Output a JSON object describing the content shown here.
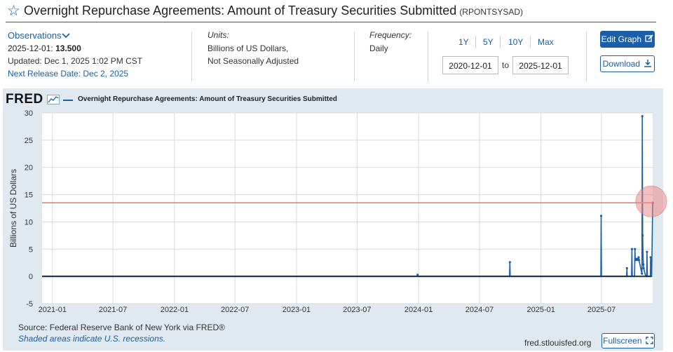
{
  "header": {
    "title": "Overnight Repurchase Agreements: Amount of Treasury Securities Submitted",
    "series_id": "(RPONTSYSAD)"
  },
  "observations": {
    "label": "Observations",
    "value_prefix": "2025-12-01: ",
    "value": "13.500",
    "updated": "Updated: Dec 1, 2025 1:02 PM CST",
    "next_release": "Next Release Date: Dec 2, 2025"
  },
  "units": {
    "label": "Units:",
    "line1": "Billions of US Dollars,",
    "line2": "Not Seasonally Adjusted"
  },
  "frequency": {
    "label": "Frequency:",
    "value": "Daily"
  },
  "range": {
    "buttons": [
      "1Y",
      "5Y",
      "10Y",
      "Max"
    ],
    "start": "2020-12-01",
    "to_label": "to",
    "end": "2025-12-01"
  },
  "actions": {
    "edit_label": "Edit Graph",
    "download_label": "Download",
    "fullscreen_label": "Fullscreen"
  },
  "footer": {
    "source": "Source: Federal Reserve Bank of New York via FRED®",
    "shaded": "Shaded areas indicate U.S. recessions.",
    "url": "fred.stlouisfed.org"
  },
  "logo_text": "FRED",
  "colors": {
    "accent": "#1b5fa8",
    "series": "#1b5fa8",
    "chart_bg": "#e1e9f0",
    "reference_line": "#e88080"
  },
  "chart_data": {
    "type": "line",
    "title": "",
    "xlabel": "",
    "ylabel": "Billions of US Dollars",
    "ylim": [
      -5,
      30
    ],
    "yticks": [
      30,
      25,
      20,
      15,
      10,
      5,
      0,
      -5
    ],
    "xticks": [
      "2021-01",
      "2021-07",
      "2022-01",
      "2022-07",
      "2023-01",
      "2023-07",
      "2024-01",
      "2024-07",
      "2025-01",
      "2025-07"
    ],
    "grid": true,
    "legend_position": "top-left",
    "reference_line": 13.5,
    "series": [
      {
        "name": "Overnight Repurchase Agreements: Amount of Treasury Securities Submitted",
        "points": [
          [
            "2020-12-01",
            0
          ],
          [
            "2023-12-28",
            0
          ],
          [
            "2023-12-29",
            0.3
          ],
          [
            "2023-12-30",
            0
          ],
          [
            "2024-09-29",
            0
          ],
          [
            "2024-09-30",
            2.6
          ],
          [
            "2024-10-01",
            0
          ],
          [
            "2025-06-29",
            0
          ],
          [
            "2025-06-30",
            11.1
          ],
          [
            "2025-07-01",
            0
          ],
          [
            "2025-09-14",
            0
          ],
          [
            "2025-09-15",
            1.5
          ],
          [
            "2025-09-16",
            0
          ],
          [
            "2025-09-29",
            0
          ],
          [
            "2025-09-30",
            5.0
          ],
          [
            "2025-10-01",
            0
          ],
          [
            "2025-10-08",
            0
          ],
          [
            "2025-10-09",
            5.0
          ],
          [
            "2025-10-10",
            3.0
          ],
          [
            "2025-10-14",
            3.2
          ],
          [
            "2025-10-15",
            3.0
          ],
          [
            "2025-10-20",
            3.5
          ],
          [
            "2025-10-21",
            3.0
          ],
          [
            "2025-10-30",
            0.5
          ],
          [
            "2025-10-31",
            29.4
          ],
          [
            "2025-11-01",
            7.5
          ],
          [
            "2025-11-03",
            2.2
          ],
          [
            "2025-11-04",
            1.5
          ],
          [
            "2025-11-10",
            0
          ],
          [
            "2025-11-13",
            0
          ],
          [
            "2025-11-14",
            4.5
          ],
          [
            "2025-11-15",
            0
          ],
          [
            "2025-11-24",
            0
          ],
          [
            "2025-11-25",
            3.5
          ],
          [
            "2025-11-26",
            2.5
          ],
          [
            "2025-11-28",
            0
          ],
          [
            "2025-12-01",
            13.5
          ]
        ]
      }
    ]
  }
}
